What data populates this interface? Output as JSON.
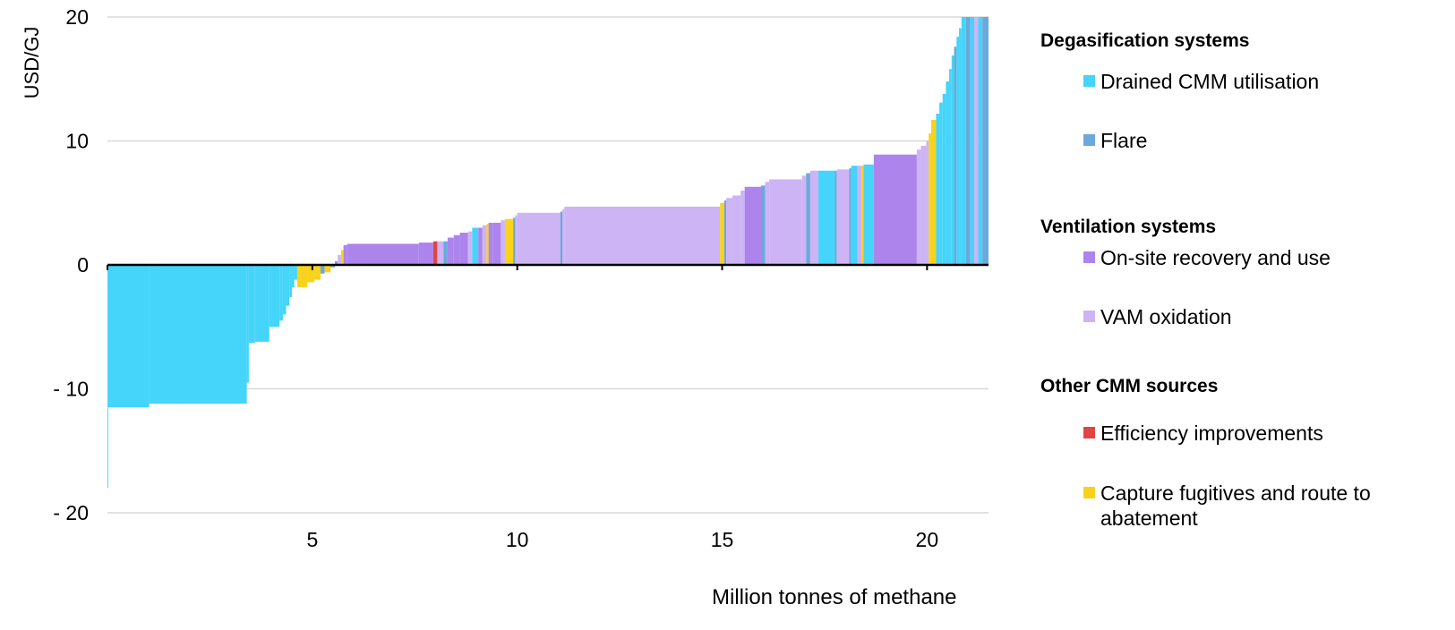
{
  "chart_data": {
    "type": "bar",
    "subtype": "marginal abatement cost curve (variable-width bars)",
    "title": "",
    "xlabel": "Million tonnes of methane",
    "ylabel": "USD/GJ",
    "xlim": [
      0,
      21.5
    ],
    "ylim": [
      -20,
      20
    ],
    "x_ticks": [
      "5",
      "10",
      "15",
      "20"
    ],
    "x_tick_values": [
      5,
      10,
      15,
      20
    ],
    "y_ticks": [
      "20",
      "10",
      "0",
      "- 10",
      "- 20"
    ],
    "y_tick_values": [
      20,
      10,
      0,
      -10,
      -20
    ],
    "grid": "horizontal",
    "legend_position": "right",
    "legend": [
      {
        "group": "Degasification systems",
        "items": [
          {
            "key": "drained",
            "label": "Drained CMM utilisation",
            "color": "#45D4FA"
          },
          {
            "key": "flare",
            "label": "Flare",
            "color": "#6CA8DB"
          }
        ]
      },
      {
        "group": "Ventilation systems",
        "items": [
          {
            "key": "onsite",
            "label": "On-site recovery and use",
            "color": "#AC84EC"
          },
          {
            "key": "vam",
            "label": "VAM oxidation",
            "color": "#CDB4F5"
          }
        ]
      },
      {
        "group": "Other CMM sources",
        "items": [
          {
            "key": "efficiency",
            "label": "Efficiency improvements",
            "color": "#E04545"
          },
          {
            "key": "capture",
            "label": "Capture fugitives and route to abatement",
            "color": "#F8D21C"
          }
        ]
      }
    ],
    "series": [
      {
        "start": 0.0,
        "end": 0.02,
        "value": -18.0,
        "category": "drained"
      },
      {
        "start": 0.02,
        "end": 1.02,
        "value": -11.5,
        "category": "drained"
      },
      {
        "start": 1.02,
        "end": 3.4,
        "value": -11.2,
        "category": "drained"
      },
      {
        "start": 3.4,
        "end": 3.45,
        "value": -9.5,
        "category": "drained"
      },
      {
        "start": 3.45,
        "end": 3.6,
        "value": -6.3,
        "category": "drained"
      },
      {
        "start": 3.6,
        "end": 3.95,
        "value": -6.2,
        "category": "drained"
      },
      {
        "start": 3.95,
        "end": 4.2,
        "value": -5.0,
        "category": "drained"
      },
      {
        "start": 4.2,
        "end": 4.28,
        "value": -4.5,
        "category": "drained"
      },
      {
        "start": 4.28,
        "end": 4.36,
        "value": -4.0,
        "category": "drained"
      },
      {
        "start": 4.36,
        "end": 4.44,
        "value": -3.3,
        "category": "drained"
      },
      {
        "start": 4.44,
        "end": 4.5,
        "value": -2.6,
        "category": "drained"
      },
      {
        "start": 4.5,
        "end": 4.56,
        "value": -1.8,
        "category": "drained"
      },
      {
        "start": 4.56,
        "end": 4.63,
        "value": -1.2,
        "category": "drained"
      },
      {
        "start": 4.63,
        "end": 4.88,
        "value": -1.8,
        "category": "capture"
      },
      {
        "start": 4.88,
        "end": 5.05,
        "value": -1.4,
        "category": "capture"
      },
      {
        "start": 5.05,
        "end": 5.2,
        "value": -1.2,
        "category": "capture"
      },
      {
        "start": 5.2,
        "end": 5.3,
        "value": -0.7,
        "category": "flare"
      },
      {
        "start": 5.3,
        "end": 5.45,
        "value": -0.6,
        "category": "capture"
      },
      {
        "start": 5.45,
        "end": 5.55,
        "value": -0.2,
        "category": "flare"
      },
      {
        "start": 5.55,
        "end": 5.62,
        "value": 0.3,
        "category": "flare"
      },
      {
        "start": 5.62,
        "end": 5.7,
        "value": 0.8,
        "category": "vam"
      },
      {
        "start": 5.7,
        "end": 5.76,
        "value": 1.2,
        "category": "capture"
      },
      {
        "start": 5.76,
        "end": 5.85,
        "value": 1.6,
        "category": "onsite"
      },
      {
        "start": 5.85,
        "end": 7.6,
        "value": 1.7,
        "category": "onsite"
      },
      {
        "start": 7.6,
        "end": 7.95,
        "value": 1.8,
        "category": "onsite"
      },
      {
        "start": 7.95,
        "end": 8.05,
        "value": 1.9,
        "category": "efficiency"
      },
      {
        "start": 8.05,
        "end": 8.2,
        "value": 1.9,
        "category": "vam"
      },
      {
        "start": 8.2,
        "end": 8.3,
        "value": 1.9,
        "category": "flare"
      },
      {
        "start": 8.3,
        "end": 8.45,
        "value": 2.2,
        "category": "onsite"
      },
      {
        "start": 8.45,
        "end": 8.6,
        "value": 2.4,
        "category": "onsite"
      },
      {
        "start": 8.6,
        "end": 8.8,
        "value": 2.6,
        "category": "onsite"
      },
      {
        "start": 8.8,
        "end": 8.9,
        "value": 2.7,
        "category": "vam"
      },
      {
        "start": 8.9,
        "end": 9.05,
        "value": 3.0,
        "category": "drained"
      },
      {
        "start": 9.05,
        "end": 9.15,
        "value": 3.0,
        "category": "onsite"
      },
      {
        "start": 9.15,
        "end": 9.25,
        "value": 3.2,
        "category": "vam"
      },
      {
        "start": 9.25,
        "end": 9.3,
        "value": 3.3,
        "category": "capture"
      },
      {
        "start": 9.3,
        "end": 9.4,
        "value": 3.4,
        "category": "onsite"
      },
      {
        "start": 9.4,
        "end": 9.6,
        "value": 3.4,
        "category": "onsite"
      },
      {
        "start": 9.6,
        "end": 9.7,
        "value": 3.6,
        "category": "vam"
      },
      {
        "start": 9.7,
        "end": 9.9,
        "value": 3.7,
        "category": "capture"
      },
      {
        "start": 9.9,
        "end": 9.95,
        "value": 3.8,
        "category": "flare"
      },
      {
        "start": 9.95,
        "end": 10.0,
        "value": 4.0,
        "category": "vam"
      },
      {
        "start": 10.0,
        "end": 11.05,
        "value": 4.2,
        "category": "vam"
      },
      {
        "start": 11.05,
        "end": 11.1,
        "value": 4.3,
        "category": "flare"
      },
      {
        "start": 11.1,
        "end": 11.15,
        "value": 4.5,
        "category": "vam"
      },
      {
        "start": 11.15,
        "end": 14.95,
        "value": 4.7,
        "category": "vam"
      },
      {
        "start": 14.95,
        "end": 15.05,
        "value": 5.0,
        "category": "capture"
      },
      {
        "start": 15.05,
        "end": 15.1,
        "value": 5.2,
        "category": "flare"
      },
      {
        "start": 15.1,
        "end": 15.25,
        "value": 5.4,
        "category": "vam"
      },
      {
        "start": 15.25,
        "end": 15.45,
        "value": 5.6,
        "category": "vam"
      },
      {
        "start": 15.45,
        "end": 15.55,
        "value": 6.0,
        "category": "vam"
      },
      {
        "start": 15.55,
        "end": 15.95,
        "value": 6.3,
        "category": "onsite"
      },
      {
        "start": 15.95,
        "end": 16.05,
        "value": 6.4,
        "category": "flare"
      },
      {
        "start": 16.05,
        "end": 16.15,
        "value": 6.7,
        "category": "vam"
      },
      {
        "start": 16.15,
        "end": 16.95,
        "value": 6.9,
        "category": "vam"
      },
      {
        "start": 16.95,
        "end": 17.05,
        "value": 7.2,
        "category": "vam"
      },
      {
        "start": 17.05,
        "end": 17.15,
        "value": 7.4,
        "category": "flare"
      },
      {
        "start": 17.15,
        "end": 17.35,
        "value": 7.6,
        "category": "vam"
      },
      {
        "start": 17.35,
        "end": 17.75,
        "value": 7.6,
        "category": "drained"
      },
      {
        "start": 17.75,
        "end": 17.8,
        "value": 7.6,
        "category": "flare"
      },
      {
        "start": 17.8,
        "end": 18.1,
        "value": 7.7,
        "category": "vam"
      },
      {
        "start": 18.1,
        "end": 18.15,
        "value": 7.8,
        "category": "flare"
      },
      {
        "start": 18.15,
        "end": 18.3,
        "value": 8.0,
        "category": "drained"
      },
      {
        "start": 18.3,
        "end": 18.4,
        "value": 8.0,
        "category": "vam"
      },
      {
        "start": 18.4,
        "end": 18.45,
        "value": 8.0,
        "category": "capture"
      },
      {
        "start": 18.45,
        "end": 18.7,
        "value": 8.1,
        "category": "drained"
      },
      {
        "start": 18.7,
        "end": 19.75,
        "value": 8.9,
        "category": "onsite"
      },
      {
        "start": 19.75,
        "end": 19.85,
        "value": 9.3,
        "category": "vam"
      },
      {
        "start": 19.85,
        "end": 19.98,
        "value": 9.6,
        "category": "vam"
      },
      {
        "start": 19.98,
        "end": 20.04,
        "value": 10.0,
        "category": "vam"
      },
      {
        "start": 20.04,
        "end": 20.1,
        "value": 10.6,
        "category": "capture"
      },
      {
        "start": 20.1,
        "end": 20.22,
        "value": 11.7,
        "category": "capture"
      },
      {
        "start": 20.22,
        "end": 20.3,
        "value": 12.2,
        "category": "drained"
      },
      {
        "start": 20.3,
        "end": 20.38,
        "value": 13.1,
        "category": "drained"
      },
      {
        "start": 20.38,
        "end": 20.46,
        "value": 13.8,
        "category": "drained"
      },
      {
        "start": 20.46,
        "end": 20.54,
        "value": 14.8,
        "category": "drained"
      },
      {
        "start": 20.54,
        "end": 20.6,
        "value": 15.8,
        "category": "drained"
      },
      {
        "start": 20.6,
        "end": 20.66,
        "value": 16.9,
        "category": "drained"
      },
      {
        "start": 20.66,
        "end": 20.72,
        "value": 17.6,
        "category": "flare"
      },
      {
        "start": 20.72,
        "end": 20.78,
        "value": 18.4,
        "category": "drained"
      },
      {
        "start": 20.78,
        "end": 20.84,
        "value": 19.1,
        "category": "drained"
      },
      {
        "start": 20.84,
        "end": 20.95,
        "value": 20.0,
        "category": "drained"
      },
      {
        "start": 20.95,
        "end": 21.05,
        "value": 20.0,
        "category": "flare"
      },
      {
        "start": 21.05,
        "end": 21.15,
        "value": 20.0,
        "category": "drained"
      },
      {
        "start": 21.15,
        "end": 21.25,
        "value": 20.0,
        "category": "vam"
      },
      {
        "start": 21.25,
        "end": 21.35,
        "value": 20.0,
        "category": "drained"
      },
      {
        "start": 21.35,
        "end": 21.5,
        "value": 20.0,
        "category": "flare"
      }
    ]
  }
}
